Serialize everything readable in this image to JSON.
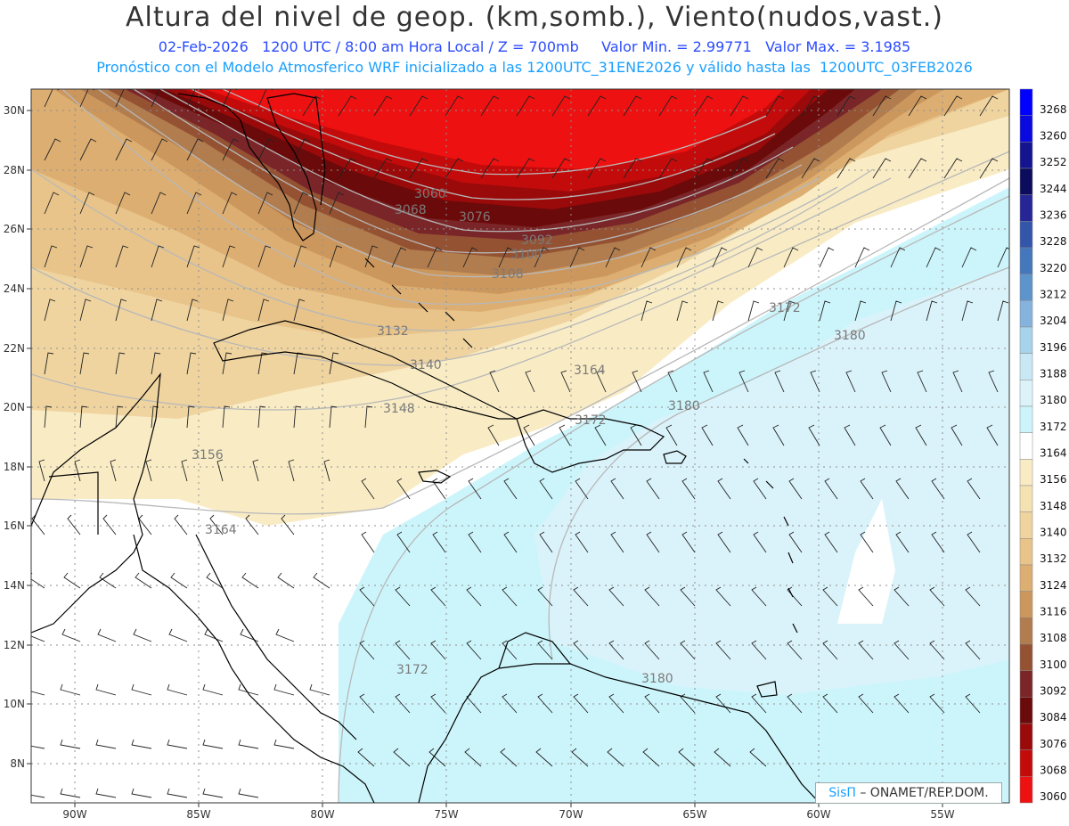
{
  "header": {
    "title": "Altura del nivel de geop. (km,somb.), Viento(nudos,vast.)",
    "date": "02-Feb-2026",
    "time_info": "1200 UTC / 8:00 am Hora Local / Z = 700mb",
    "min": "Valor Min. = 2.99771",
    "max": "Valor Max. = 3.1985",
    "model_info": "Pronóstico con el Modelo Atmosferico WRF inicializado a las 1200UTC_31ENE2026 y válido hasta las  1200UTC_03FEB2026"
  },
  "axes": {
    "lat_labels": [
      "30N",
      "28N",
      "26N",
      "24N",
      "22N",
      "20N",
      "18N",
      "16N",
      "14N",
      "12N",
      "10N",
      "8N"
    ],
    "lon_labels": [
      "90W",
      "85W",
      "80W",
      "75W",
      "70W",
      "65W",
      "60W",
      "55W"
    ]
  },
  "contours": {
    "labels": [
      "3060",
      "3068",
      "3076",
      "3092",
      "3100",
      "3108",
      "3132",
      "3140",
      "3148",
      "3156",
      "3164",
      "3164",
      "3172",
      "3172",
      "3172",
      "3180",
      "3180",
      "3180"
    ]
  },
  "legend": {
    "levels": [
      "3268",
      "3260",
      "3252",
      "3244",
      "3236",
      "3228",
      "3220",
      "3212",
      "3204",
      "3196",
      "3188",
      "3180",
      "3172",
      "3164",
      "3156",
      "3148",
      "3140",
      "3132",
      "3124",
      "3116",
      "3108",
      "3100",
      "3092",
      "3084",
      "3076",
      "3068",
      "3060"
    ],
    "colors": [
      "#0000ff",
      "#0a0ae0",
      "#141490",
      "#0c0c5c",
      "#262696",
      "#3355aa",
      "#4477bb",
      "#5e94cc",
      "#86b3dd",
      "#a7d3ec",
      "#c7e8f4",
      "#dcf3fa",
      "#ccf5fb",
      "#ffffff",
      "#f9ecc5",
      "#f5e2b2",
      "#efd4a0",
      "#e8c48a",
      "#dcae72",
      "#cc975d",
      "#b17c4e",
      "#945233",
      "#7a2629",
      "#6b0a0a",
      "#9a0a0a",
      "#c40b0b",
      "#ee1111"
    ]
  },
  "credit": {
    "brand": "SisΠ",
    "text": " – ONAMET/REP.DOM."
  }
}
